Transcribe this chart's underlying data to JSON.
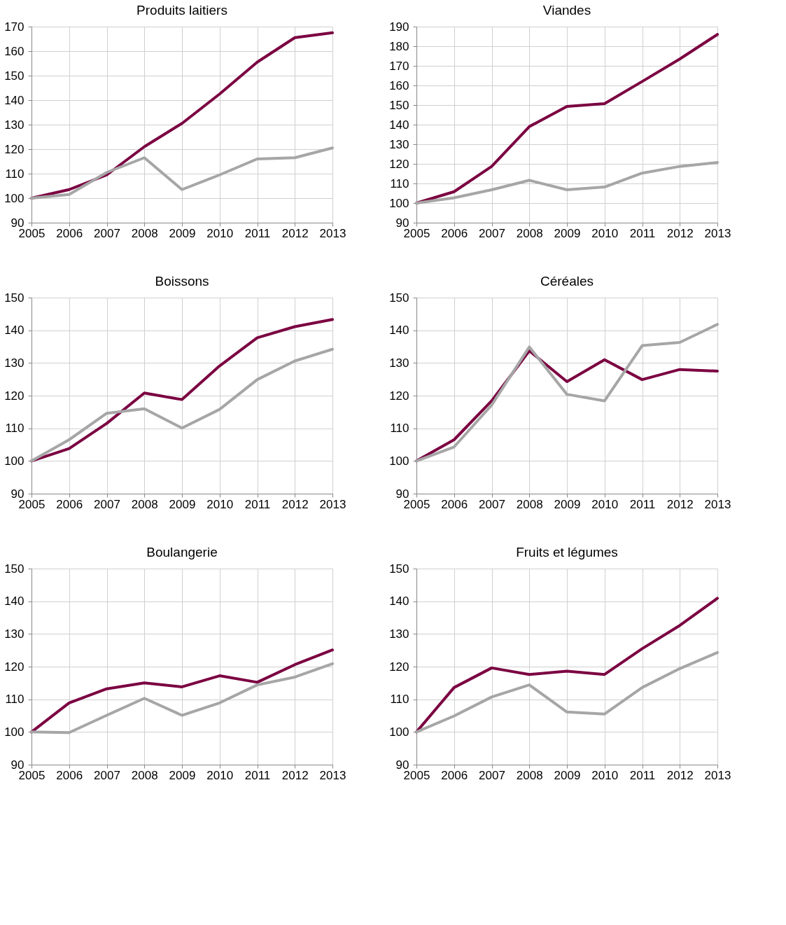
{
  "chart_data": [
    {
      "type": "line",
      "title": "Produits laitiers",
      "x": [
        2005,
        2006,
        2007,
        2008,
        2009,
        2010,
        2011,
        2012,
        2013
      ],
      "xlim": [
        2005,
        2013
      ],
      "xticks": [
        2005,
        2006,
        2007,
        2008,
        2009,
        2010,
        2011,
        2012,
        2013
      ],
      "ylim": [
        90,
        170
      ],
      "yticks": [
        90,
        100,
        110,
        120,
        130,
        140,
        150,
        160,
        170
      ],
      "grid": true,
      "legend": false,
      "series": [
        {
          "color": "#7b0041",
          "values": [
            100,
            103.5,
            109.5,
            121,
            130.5,
            142.5,
            155.5,
            165.5,
            167.5
          ]
        },
        {
          "color": "#a6a6a6",
          "values": [
            100,
            101.5,
            110.5,
            116.5,
            103.5,
            109.5,
            116,
            116.5,
            120.5
          ]
        }
      ]
    },
    {
      "type": "line",
      "title": "Viandes",
      "x": [
        2005,
        2006,
        2007,
        2008,
        2009,
        2010,
        2011,
        2012,
        2013
      ],
      "xlim": [
        2005,
        2013
      ],
      "xticks": [
        2005,
        2006,
        2007,
        2008,
        2009,
        2010,
        2011,
        2012,
        2013
      ],
      "ylim": [
        90,
        190
      ],
      "yticks": [
        90,
        100,
        110,
        120,
        130,
        140,
        150,
        160,
        170,
        180,
        190
      ],
      "grid": true,
      "legend": false,
      "series": [
        {
          "color": "#7b0041",
          "values": [
            100,
            105.8,
            118.7,
            139,
            149.3,
            150.7,
            162,
            173.5,
            186
          ]
        },
        {
          "color": "#a6a6a6",
          "values": [
            100,
            102.7,
            106.8,
            111.6,
            106.8,
            108.2,
            115.3,
            118.7,
            120.7
          ]
        }
      ]
    },
    {
      "type": "line",
      "title": "Boissons",
      "x": [
        2005,
        2006,
        2007,
        2008,
        2009,
        2010,
        2011,
        2012,
        2013
      ],
      "xlim": [
        2005,
        2013
      ],
      "xticks": [
        2005,
        2006,
        2007,
        2008,
        2009,
        2010,
        2011,
        2012,
        2013
      ],
      "ylim": [
        90,
        150
      ],
      "yticks": [
        90,
        100,
        110,
        120,
        130,
        140,
        150
      ],
      "grid": true,
      "legend": false,
      "series": [
        {
          "color": "#7b0041",
          "values": [
            100,
            103.8,
            111.5,
            120.8,
            118.8,
            129.1,
            137.7,
            141.1,
            143.3
          ]
        },
        {
          "color": "#a6a6a6",
          "values": [
            100,
            106.5,
            114.6,
            116,
            110.1,
            115.8,
            124.9,
            130.6,
            134.2
          ]
        }
      ]
    },
    {
      "type": "line",
      "title": "Céréales",
      "x": [
        2005,
        2006,
        2007,
        2008,
        2009,
        2010,
        2011,
        2012,
        2013
      ],
      "xlim": [
        2005,
        2013
      ],
      "xticks": [
        2005,
        2006,
        2007,
        2008,
        2009,
        2010,
        2011,
        2012,
        2013
      ],
      "ylim": [
        90,
        150
      ],
      "yticks": [
        90,
        100,
        110,
        120,
        130,
        140,
        150
      ],
      "grid": true,
      "legend": false,
      "series": [
        {
          "color": "#7b0041",
          "values": [
            100,
            106.5,
            118.4,
            133.7,
            124.3,
            131,
            124.9,
            128,
            127.5
          ]
        },
        {
          "color": "#a6a6a6",
          "values": [
            100,
            104.3,
            117.1,
            134.9,
            120.4,
            118.4,
            135.3,
            136.3,
            141.8
          ]
        }
      ]
    },
    {
      "type": "line",
      "title": "Boulangerie",
      "x": [
        2005,
        2006,
        2007,
        2008,
        2009,
        2010,
        2011,
        2012,
        2013
      ],
      "xlim": [
        2005,
        2013
      ],
      "xticks": [
        2005,
        2006,
        2007,
        2008,
        2009,
        2010,
        2011,
        2012,
        2013
      ],
      "ylim": [
        90,
        150
      ],
      "yticks": [
        90,
        100,
        110,
        120,
        130,
        140,
        150
      ],
      "grid": true,
      "legend": false,
      "series": [
        {
          "color": "#7b0041",
          "values": [
            100,
            108.9,
            113.2,
            115,
            113.8,
            117.2,
            115.2,
            120.6,
            125.1
          ]
        },
        {
          "color": "#a6a6a6",
          "values": [
            100,
            99.8,
            105.1,
            110.3,
            105.1,
            108.9,
            114.4,
            116.8,
            120.9
          ]
        }
      ]
    },
    {
      "type": "line",
      "title": "Fruits et légumes",
      "x": [
        2005,
        2006,
        2007,
        2008,
        2009,
        2010,
        2011,
        2012,
        2013
      ],
      "xlim": [
        2005,
        2013
      ],
      "xticks": [
        2005,
        2006,
        2007,
        2008,
        2009,
        2010,
        2011,
        2012,
        2013
      ],
      "ylim": [
        90,
        150
      ],
      "yticks": [
        90,
        100,
        110,
        120,
        130,
        140,
        150
      ],
      "grid": true,
      "legend": false,
      "series": [
        {
          "color": "#7b0041",
          "values": [
            100,
            113.6,
            119.6,
            117.6,
            118.6,
            117.6,
            125.5,
            132.6,
            140.9
          ]
        },
        {
          "color": "#a6a6a6",
          "values": [
            100,
            104.9,
            110.7,
            114.4,
            106.1,
            105.5,
            113.6,
            119.4,
            124.3
          ]
        }
      ]
    }
  ]
}
